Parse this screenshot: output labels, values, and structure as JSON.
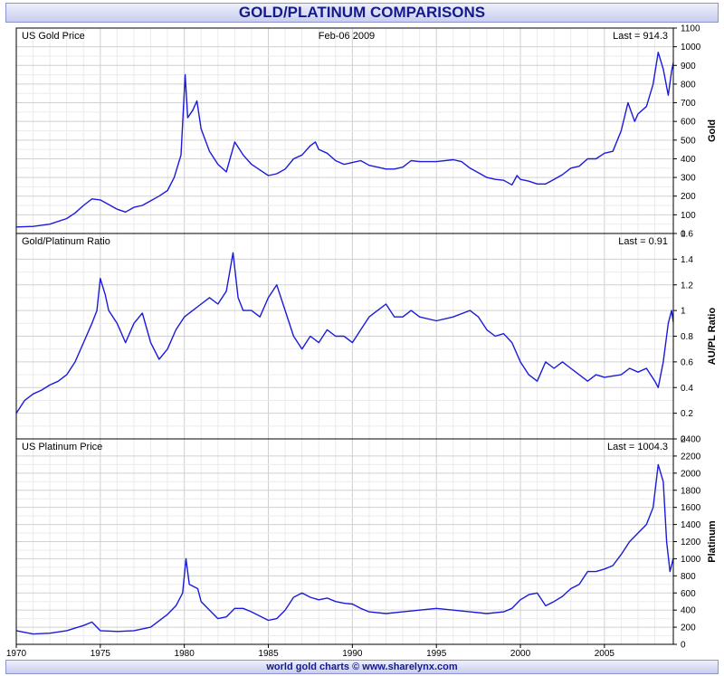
{
  "header": {
    "title": "GOLD/PLATINUM COMPARISONS"
  },
  "footer": {
    "credit": "world gold charts © www.sharelynx.com"
  },
  "colors": {
    "series": "#1a1adc",
    "frame": "#000000",
    "grid_major": "#d0d0d0",
    "grid_minor": "#ebebeb"
  },
  "chart_data": [
    {
      "type": "line",
      "title": "US Gold Price",
      "date": "Feb-06 2009",
      "last": "Last = 914.3",
      "ylabel": "Gold",
      "ylim": [
        0,
        1100
      ],
      "yticks": [
        0,
        100,
        200,
        300,
        400,
        500,
        600,
        700,
        800,
        900,
        1000,
        1100
      ],
      "xlim": [
        1970,
        2009.1
      ],
      "series": [
        {
          "values": [
            [
              1970,
              35
            ],
            [
              1971,
              38
            ],
            [
              1972,
              50
            ],
            [
              1973,
              80
            ],
            [
              1973.5,
              110
            ],
            [
              1974,
              150
            ],
            [
              1974.5,
              185
            ],
            [
              1975,
              180
            ],
            [
              1975.5,
              155
            ],
            [
              1976,
              130
            ],
            [
              1976.5,
              115
            ],
            [
              1977,
              140
            ],
            [
              1977.5,
              150
            ],
            [
              1978,
              175
            ],
            [
              1978.5,
              200
            ],
            [
              1979,
              230
            ],
            [
              1979.4,
              300
            ],
            [
              1979.8,
              420
            ],
            [
              1980.05,
              850
            ],
            [
              1980.2,
              620
            ],
            [
              1980.5,
              660
            ],
            [
              1980.75,
              710
            ],
            [
              1981,
              560
            ],
            [
              1981.5,
              440
            ],
            [
              1982,
              370
            ],
            [
              1982.5,
              330
            ],
            [
              1983,
              490
            ],
            [
              1983.5,
              420
            ],
            [
              1984,
              370
            ],
            [
              1984.5,
              340
            ],
            [
              1985,
              310
            ],
            [
              1985.5,
              320
            ],
            [
              1986,
              345
            ],
            [
              1986.5,
              400
            ],
            [
              1987,
              420
            ],
            [
              1987.5,
              470
            ],
            [
              1987.8,
              490
            ],
            [
              1988,
              450
            ],
            [
              1988.5,
              430
            ],
            [
              1989,
              390
            ],
            [
              1989.5,
              370
            ],
            [
              1990,
              380
            ],
            [
              1990.5,
              390
            ],
            [
              1991,
              365
            ],
            [
              1991.5,
              355
            ],
            [
              1992,
              345
            ],
            [
              1992.5,
              345
            ],
            [
              1993,
              355
            ],
            [
              1993.5,
              390
            ],
            [
              1994,
              385
            ],
            [
              1995,
              385
            ],
            [
              1996,
              395
            ],
            [
              1996.5,
              385
            ],
            [
              1997,
              350
            ],
            [
              1997.5,
              325
            ],
            [
              1998,
              300
            ],
            [
              1998.5,
              290
            ],
            [
              1999,
              285
            ],
            [
              1999.5,
              260
            ],
            [
              1999.8,
              310
            ],
            [
              2000,
              290
            ],
            [
              2000.5,
              280
            ],
            [
              2001,
              265
            ],
            [
              2001.5,
              265
            ],
            [
              2002,
              290
            ],
            [
              2002.5,
              315
            ],
            [
              2003,
              350
            ],
            [
              2003.5,
              360
            ],
            [
              2004,
              400
            ],
            [
              2004.5,
              400
            ],
            [
              2005,
              430
            ],
            [
              2005.5,
              440
            ],
            [
              2006,
              550
            ],
            [
              2006.4,
              700
            ],
            [
              2006.8,
              600
            ],
            [
              2007,
              640
            ],
            [
              2007.5,
              680
            ],
            [
              2007.9,
              800
            ],
            [
              2008.2,
              970
            ],
            [
              2008.5,
              880
            ],
            [
              2008.8,
              740
            ],
            [
              2009,
              870
            ],
            [
              2009.1,
              914
            ]
          ]
        }
      ]
    },
    {
      "type": "line",
      "title": "Gold/Platinum Ratio",
      "last": "Last = 0.91",
      "ylabel": "AU/PL Ratio",
      "ylim": [
        0,
        1.6
      ],
      "yticks": [
        0,
        0.2,
        0.4,
        0.6,
        0.8,
        1,
        1.2,
        1.4,
        1.6
      ],
      "xlim": [
        1970,
        2009.1
      ],
      "series": [
        {
          "values": [
            [
              1970,
              0.2
            ],
            [
              1970.5,
              0.3
            ],
            [
              1971,
              0.35
            ],
            [
              1971.5,
              0.38
            ],
            [
              1972,
              0.42
            ],
            [
              1972.5,
              0.45
            ],
            [
              1973,
              0.5
            ],
            [
              1973.5,
              0.6
            ],
            [
              1974,
              0.75
            ],
            [
              1974.5,
              0.9
            ],
            [
              1974.8,
              1.0
            ],
            [
              1975,
              1.25
            ],
            [
              1975.3,
              1.12
            ],
            [
              1975.5,
              1.0
            ],
            [
              1976,
              0.9
            ],
            [
              1976.5,
              0.75
            ],
            [
              1977,
              0.9
            ],
            [
              1977.5,
              0.98
            ],
            [
              1978,
              0.75
            ],
            [
              1978.5,
              0.62
            ],
            [
              1979,
              0.7
            ],
            [
              1979.5,
              0.85
            ],
            [
              1980,
              0.95
            ],
            [
              1980.5,
              1.0
            ],
            [
              1981,
              1.05
            ],
            [
              1981.5,
              1.1
            ],
            [
              1982,
              1.05
            ],
            [
              1982.5,
              1.15
            ],
            [
              1982.9,
              1.45
            ],
            [
              1983.2,
              1.1
            ],
            [
              1983.5,
              1.0
            ],
            [
              1984,
              1.0
            ],
            [
              1984.5,
              0.95
            ],
            [
              1985,
              1.1
            ],
            [
              1985.5,
              1.2
            ],
            [
              1986,
              1.0
            ],
            [
              1986.5,
              0.8
            ],
            [
              1987,
              0.7
            ],
            [
              1987.5,
              0.8
            ],
            [
              1988,
              0.75
            ],
            [
              1988.5,
              0.85
            ],
            [
              1989,
              0.8
            ],
            [
              1989.5,
              0.8
            ],
            [
              1990,
              0.75
            ],
            [
              1990.5,
              0.85
            ],
            [
              1991,
              0.95
            ],
            [
              1991.5,
              1.0
            ],
            [
              1992,
              1.05
            ],
            [
              1992.5,
              0.95
            ],
            [
              1993,
              0.95
            ],
            [
              1993.5,
              1.0
            ],
            [
              1994,
              0.95
            ],
            [
              1995,
              0.92
            ],
            [
              1996,
              0.95
            ],
            [
              1997,
              1.0
            ],
            [
              1997.5,
              0.95
            ],
            [
              1998,
              0.85
            ],
            [
              1998.5,
              0.8
            ],
            [
              1999,
              0.82
            ],
            [
              1999.5,
              0.75
            ],
            [
              2000,
              0.6
            ],
            [
              2000.5,
              0.5
            ],
            [
              2001,
              0.45
            ],
            [
              2001.5,
              0.6
            ],
            [
              2002,
              0.55
            ],
            [
              2002.5,
              0.6
            ],
            [
              2003,
              0.55
            ],
            [
              2004,
              0.45
            ],
            [
              2004.5,
              0.5
            ],
            [
              2005,
              0.48
            ],
            [
              2006,
              0.5
            ],
            [
              2006.5,
              0.55
            ],
            [
              2007,
              0.52
            ],
            [
              2007.5,
              0.55
            ],
            [
              2008,
              0.45
            ],
            [
              2008.2,
              0.4
            ],
            [
              2008.5,
              0.6
            ],
            [
              2008.8,
              0.9
            ],
            [
              2009,
              1.0
            ],
            [
              2009.1,
              0.91
            ]
          ]
        }
      ]
    },
    {
      "type": "line",
      "title": "US Platinum Price",
      "last": "Last = 1004.3",
      "ylabel": "Platinum",
      "ylim": [
        0,
        2400
      ],
      "yticks": [
        0,
        200,
        400,
        600,
        800,
        1000,
        1200,
        1400,
        1600,
        1800,
        2000,
        2200,
        2400
      ],
      "xlim": [
        1970,
        2009.1
      ],
      "xticks": [
        1970,
        1975,
        1980,
        1985,
        1990,
        1995,
        2000,
        2005
      ],
      "series": [
        {
          "values": [
            [
              1970,
              160
            ],
            [
              1971,
              120
            ],
            [
              1972,
              130
            ],
            [
              1973,
              160
            ],
            [
              1974,
              220
            ],
            [
              1974.5,
              260
            ],
            [
              1975,
              160
            ],
            [
              1976,
              150
            ],
            [
              1977,
              160
            ],
            [
              1978,
              200
            ],
            [
              1979,
              350
            ],
            [
              1979.5,
              450
            ],
            [
              1979.9,
              600
            ],
            [
              1980.1,
              1000
            ],
            [
              1980.3,
              700
            ],
            [
              1980.8,
              650
            ],
            [
              1981,
              500
            ],
            [
              1981.5,
              400
            ],
            [
              1982,
              300
            ],
            [
              1982.5,
              320
            ],
            [
              1983,
              420
            ],
            [
              1983.5,
              420
            ],
            [
              1984,
              380
            ],
            [
              1985,
              280
            ],
            [
              1985.5,
              300
            ],
            [
              1986,
              400
            ],
            [
              1986.5,
              550
            ],
            [
              1987,
              600
            ],
            [
              1987.5,
              550
            ],
            [
              1988,
              520
            ],
            [
              1988.5,
              540
            ],
            [
              1989,
              500
            ],
            [
              1989.5,
              480
            ],
            [
              1990,
              470
            ],
            [
              1990.5,
              420
            ],
            [
              1991,
              380
            ],
            [
              1992,
              360
            ],
            [
              1993,
              380
            ],
            [
              1994,
              400
            ],
            [
              1995,
              420
            ],
            [
              1996,
              400
            ],
            [
              1997,
              380
            ],
            [
              1998,
              360
            ],
            [
              1999,
              380
            ],
            [
              1999.5,
              420
            ],
            [
              2000,
              520
            ],
            [
              2000.5,
              580
            ],
            [
              2001,
              600
            ],
            [
              2001.5,
              450
            ],
            [
              2002,
              500
            ],
            [
              2002.5,
              560
            ],
            [
              2003,
              650
            ],
            [
              2003.5,
              700
            ],
            [
              2004,
              850
            ],
            [
              2004.5,
              850
            ],
            [
              2005,
              880
            ],
            [
              2005.5,
              920
            ],
            [
              2006,
              1050
            ],
            [
              2006.5,
              1200
            ],
            [
              2007,
              1300
            ],
            [
              2007.5,
              1400
            ],
            [
              2007.9,
              1600
            ],
            [
              2008.2,
              2100
            ],
            [
              2008.5,
              1900
            ],
            [
              2008.7,
              1200
            ],
            [
              2008.9,
              850
            ],
            [
              2009.1,
              1004
            ]
          ]
        }
      ]
    }
  ]
}
